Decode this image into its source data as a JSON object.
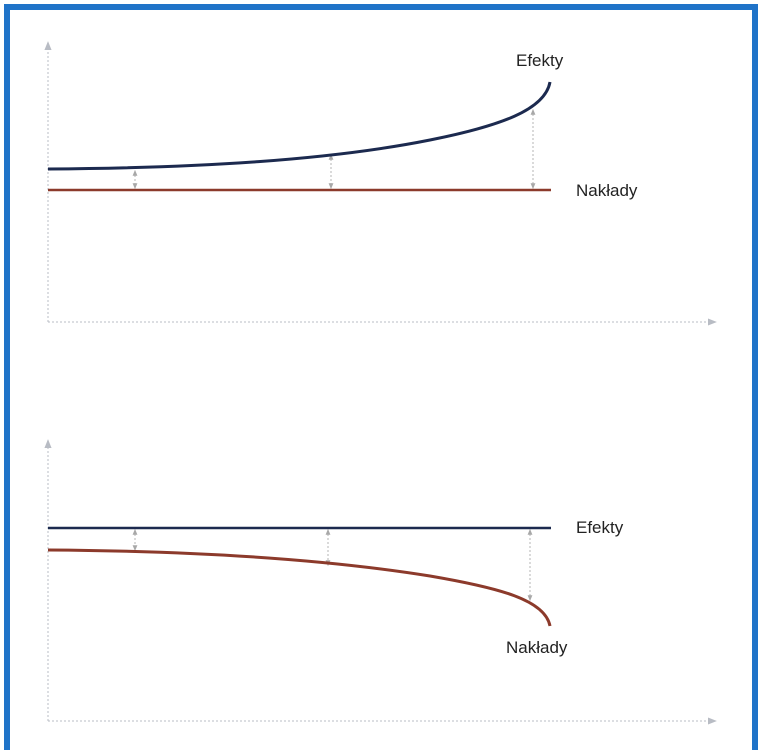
{
  "panels": [
    {
      "id": "top",
      "effects_label": "Efekty",
      "inputs_label": "Nakłady"
    },
    {
      "id": "bottom",
      "effects_label": "Efekty",
      "inputs_label": "Nakłady"
    }
  ],
  "colors": {
    "frame": "#1f73c8",
    "effects_curve": "#1c2a4f",
    "inputs_curve": "#8c3a2b",
    "axis": "#b8bcc4",
    "gap_arrow": "#b5b5b5"
  }
}
